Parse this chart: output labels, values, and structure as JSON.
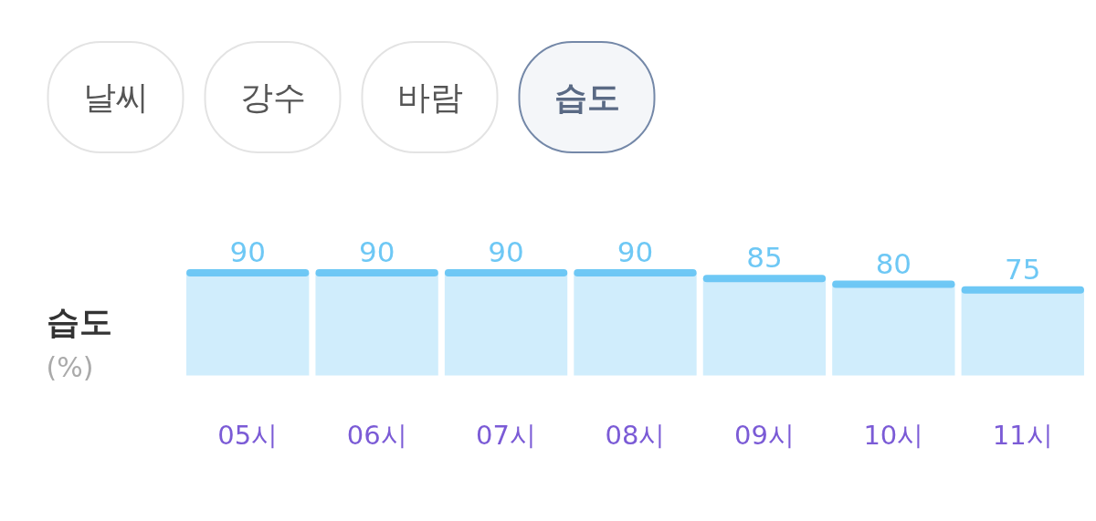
{
  "chart_data": {
    "type": "bar",
    "categories": [
      "05시",
      "06시",
      "07시",
      "08시",
      "09시",
      "10시",
      "11시"
    ],
    "values": [
      90,
      90,
      90,
      90,
      85,
      80,
      75
    ],
    "color": "#6ec8f5",
    "data_labels": true,
    "ylabel": "습도\n(%)",
    "annotations": [
      "날씨",
      "강수",
      "바람",
      "습도"
    ]
  }
}
